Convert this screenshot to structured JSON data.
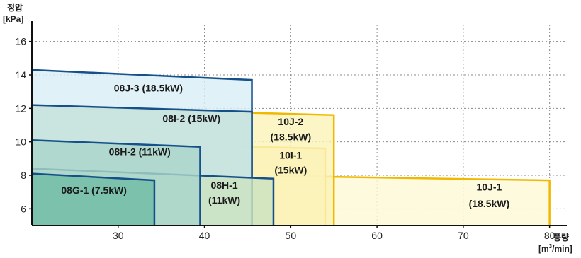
{
  "chart_data": {
    "type": "area",
    "ylabel": "정압",
    "yunit": "[kPa]",
    "xlabel": "풍량",
    "xunit_prefix": "[m",
    "xunit_sup": "3",
    "xunit_suffix": "/min]",
    "xlim": [
      20,
      82
    ],
    "ylim": [
      5,
      17
    ],
    "xticks": [
      30,
      40,
      50,
      60,
      70,
      80
    ],
    "yticks": [
      6,
      8,
      10,
      12,
      14,
      16
    ],
    "grid": true,
    "regions": [
      {
        "name": "10J-1",
        "rating": "(18.5kW)",
        "x_max": 80,
        "y_start": 8.2,
        "y_end": 7.7,
        "fill": "#fdf9d6",
        "stroke": "#f0b800",
        "labels": [
          {
            "text": "10J-1",
            "x": 73,
            "y": 7.1
          },
          {
            "text": "(18.5kW)",
            "x": 73,
            "y": 6.1
          }
        ]
      },
      {
        "name": "10I-1",
        "rating": "(15kW)",
        "x_max": 54,
        "y_start": 10.0,
        "y_end": 9.6,
        "fill": "#fbf3b8",
        "stroke": "#f0b800",
        "labels": [
          {
            "text": "10I-1",
            "x": 50,
            "y": 9.0
          },
          {
            "text": "(15kW)",
            "x": 50,
            "y": 8.1
          }
        ]
      },
      {
        "name": "10J-2",
        "rating": "(18.5kW)",
        "x_max": 55,
        "y_start": 12.1,
        "y_end": 11.6,
        "fill": "#fbf3b8",
        "stroke": "#f0b800",
        "labels": [
          {
            "text": "10J-2",
            "x": 50,
            "y": 11.0
          },
          {
            "text": "(18.5kW)",
            "x": 50,
            "y": 10.1
          }
        ]
      },
      {
        "name": "08J-3",
        "rating": "(18.5kW)",
        "x_max": 45.5,
        "y_start": 14.3,
        "y_end": 13.7,
        "fill": "#d9eef7",
        "stroke": "#16508a",
        "labels": [
          {
            "text": "08J-3 (18.5kW)",
            "x": 33.5,
            "y": 13.0
          }
        ]
      },
      {
        "name": "08I-2",
        "rating": "(15kW)",
        "x_max": 45.5,
        "y_start": 12.2,
        "y_end": 11.8,
        "fill": "#c5e2dd",
        "stroke": "#16508a",
        "labels": [
          {
            "text": "08I-2 (15kW)",
            "x": 38.5,
            "y": 11.2
          }
        ]
      },
      {
        "name": "08H-1",
        "rating": "(11kW)",
        "x_max": 48,
        "y_start": 8.4,
        "y_end": 7.8,
        "fill": "#cbe3c0",
        "stroke": "#16508a",
        "labels": [
          {
            "text": "08H-1",
            "x": 42.3,
            "y": 7.2
          },
          {
            "text": "(11kW)",
            "x": 42.3,
            "y": 6.3
          }
        ]
      },
      {
        "name": "08H-2",
        "rating": "(11kW)",
        "x_max": 39.5,
        "y_start": 10.1,
        "y_end": 9.7,
        "fill": "#a9d6cb",
        "stroke": "#16508a",
        "labels": [
          {
            "text": "08H-2 (11kW)",
            "x": 32.5,
            "y": 9.2
          }
        ]
      },
      {
        "name": "08G-1",
        "rating": "(7.5kW)",
        "x_max": 34.2,
        "y_start": 8.1,
        "y_end": 7.7,
        "fill": "#6fbca5",
        "stroke": "#16508a",
        "labels": [
          {
            "text": "08G-1 (7.5kW)",
            "x": 27.2,
            "y": 6.9
          }
        ]
      }
    ]
  },
  "colors": {
    "blue_stroke": "#16508a",
    "yellow_stroke": "#f0b800",
    "grid": "#8a8a8a",
    "axis": "#111111"
  }
}
